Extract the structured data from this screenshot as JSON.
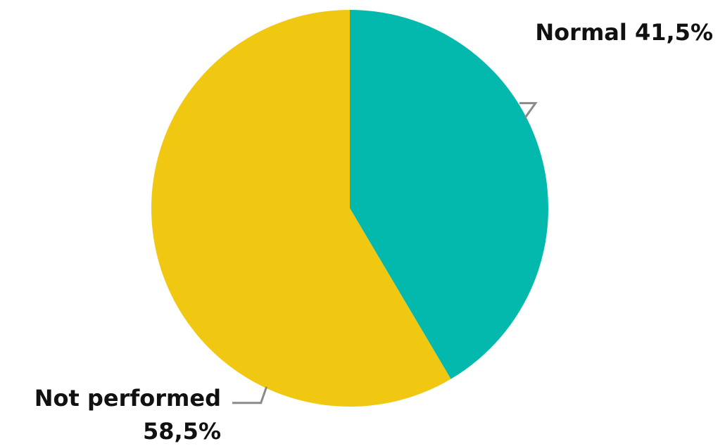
{
  "chart_data": {
    "type": "pie",
    "title": "",
    "slices": [
      {
        "label": "Normal",
        "value": 41.5,
        "display": "Normal 41,5%",
        "color": "#03b8ac"
      },
      {
        "label": "Not performed",
        "value": 58.5,
        "display_lines": [
          "Not performed",
          "58,5%"
        ],
        "color": "#f0c812"
      }
    ],
    "start_angle": "12 o'clock",
    "direction": "clockwise",
    "legend": "none"
  }
}
